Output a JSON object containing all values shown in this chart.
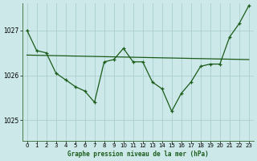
{
  "background_color": "#cde8e8",
  "grid_color": "#aacfcf",
  "line_color": "#1a5c1a",
  "xlabel": "Graphe pression niveau de la mer (hPa)",
  "yticks": [
    1025,
    1026,
    1027
  ],
  "xticks": [
    0,
    1,
    2,
    3,
    4,
    5,
    6,
    7,
    8,
    9,
    10,
    11,
    12,
    13,
    14,
    15,
    16,
    17,
    18,
    19,
    20,
    21,
    22,
    23
  ],
  "xlim": [
    -0.5,
    23.5
  ],
  "ylim": [
    1024.55,
    1027.6
  ],
  "hours": [
    0,
    1,
    2,
    3,
    4,
    5,
    6,
    7,
    8,
    9,
    10,
    11,
    12,
    13,
    14,
    15,
    16,
    17,
    18,
    19,
    20,
    21,
    22,
    23
  ],
  "pressure": [
    1027.0,
    1026.55,
    1026.5,
    1026.05,
    1025.9,
    1025.75,
    1025.65,
    1025.4,
    1026.3,
    1026.35,
    1026.6,
    1026.3,
    1026.3,
    1025.85,
    1025.7,
    1025.2,
    1025.6,
    1025.85,
    1026.2,
    1026.25,
    1026.25,
    1026.85,
    1027.15,
    1027.55
  ],
  "trend_x": [
    0,
    23
  ],
  "trend_y": [
    1026.45,
    1026.35
  ]
}
